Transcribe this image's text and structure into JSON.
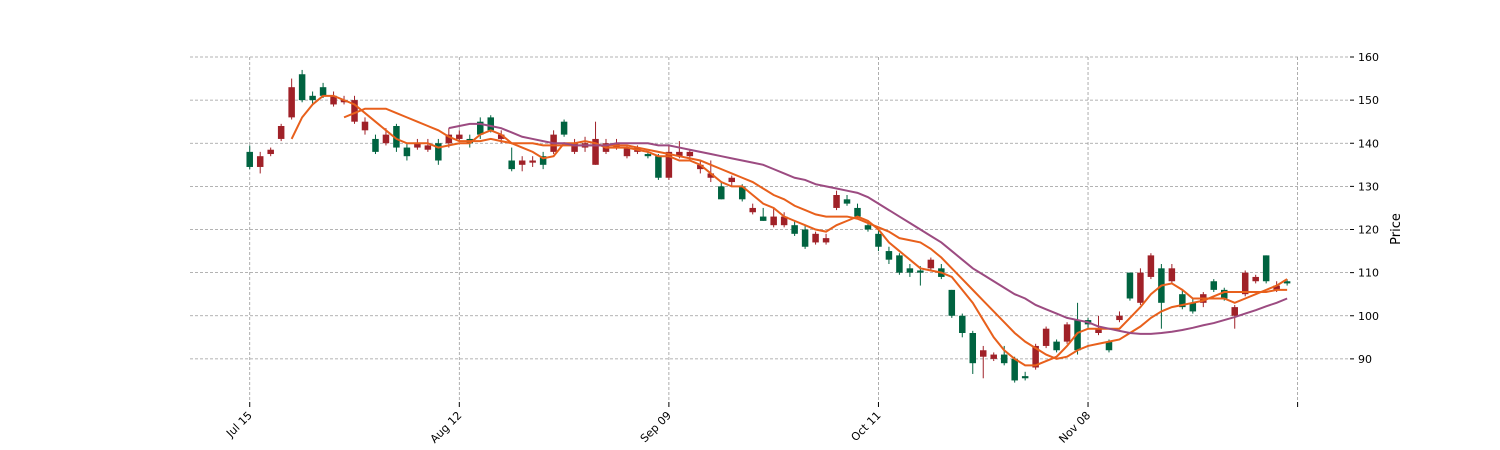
{
  "chart_data": {
    "type": "candlestick",
    "y_label": "Price",
    "up_color": "#006340",
    "down_color": "#a02128",
    "xlim": [
      -5.7,
      105
    ],
    "ylim": [
      80,
      160
    ],
    "xticks": [
      {
        "value": 0,
        "label": "Jul 15"
      },
      {
        "value": 20,
        "label": "Aug 12"
      },
      {
        "value": 40,
        "label": "Sep 09"
      },
      {
        "value": 60,
        "label": "Oct 11"
      },
      {
        "value": 80,
        "label": "Nov 08"
      },
      {
        "value": 100,
        "label": null
      }
    ],
    "yticks": [
      90,
      100,
      110,
      120,
      130,
      140,
      150,
      160
    ],
    "grid": true,
    "open": [
      134.5,
      137,
      138.5,
      144,
      153,
      150,
      150,
      151,
      151,
      150,
      150,
      145,
      138,
      142,
      139,
      137,
      140,
      139.5,
      136,
      142,
      142,
      140,
      142,
      143,
      142,
      134,
      136,
      136,
      135,
      142,
      142,
      140,
      140,
      141,
      140,
      140,
      139,
      139,
      137,
      132,
      138,
      138,
      138,
      135,
      133,
      127,
      132,
      127,
      125,
      122,
      123,
      123,
      119,
      116,
      119,
      118,
      128,
      126,
      123,
      120,
      116,
      113,
      110,
      110,
      110,
      113,
      109,
      100,
      96,
      89,
      92,
      91,
      89,
      85,
      85.5,
      93,
      97,
      92,
      98,
      92,
      98,
      97,
      92,
      100,
      104,
      110,
      114,
      103,
      111,
      102,
      101,
      105,
      106,
      104,
      102,
      110,
      109,
      108,
      107,
      107.5
    ],
    "close": [
      138,
      134.5,
      137.5,
      141,
      146,
      156,
      151,
      153,
      149,
      149.5,
      145,
      143,
      141,
      140,
      144,
      139,
      139,
      138.5,
      140,
      140,
      141,
      141,
      145,
      146,
      141,
      136,
      135,
      135.5,
      137,
      138,
      145,
      138,
      139,
      135,
      138,
      139,
      137,
      138,
      137.5,
      137,
      132,
      137,
      137,
      134,
      132,
      130,
      131,
      130,
      124,
      123,
      121,
      121,
      121,
      120,
      117,
      117,
      125,
      127,
      125,
      121,
      119,
      115,
      114,
      111,
      110.5,
      111,
      111,
      106,
      100,
      96,
      90.5,
      90,
      91,
      90,
      86,
      88,
      93,
      94,
      94,
      99,
      99,
      96,
      94,
      99,
      110,
      103,
      109,
      111,
      108,
      105,
      103,
      103,
      108,
      106,
      100,
      105,
      108,
      114,
      106,
      108
    ],
    "high": [
      139.5,
      138,
      139,
      144.5,
      155,
      157,
      152,
      154,
      152,
      151,
      151,
      146,
      142,
      143.5,
      144.5,
      140,
      141,
      141,
      141,
      143.5,
      143,
      142,
      146,
      146.5,
      143,
      139,
      137,
      137,
      138,
      143,
      145.5,
      141,
      141.5,
      145,
      141,
      141,
      139.5,
      139.5,
      138,
      137.5,
      139.5,
      140.5,
      138.5,
      136,
      136,
      131,
      132.5,
      130.5,
      126,
      125,
      125,
      124,
      122,
      121,
      119.5,
      119,
      129,
      128,
      126,
      122,
      120.5,
      116,
      114.5,
      112,
      111.5,
      113.5,
      112,
      106,
      100.5,
      96.5,
      93,
      91.5,
      93,
      90.5,
      87,
      93.5,
      97.5,
      94.5,
      98.5,
      103,
      99.5,
      100,
      94.5,
      101,
      110,
      111,
      114.5,
      112,
      112,
      106,
      104,
      105.5,
      108.5,
      106.5,
      102.5,
      110.5,
      109.5,
      114,
      108,
      108.5
    ],
    "low": [
      134,
      133,
      137,
      140.5,
      145.5,
      149.5,
      149,
      150.5,
      148.5,
      149,
      144.5,
      142,
      137.5,
      139.5,
      138,
      136,
      138.5,
      138,
      135,
      139,
      140.5,
      139,
      141,
      142.5,
      140,
      133.5,
      133.5,
      134.5,
      134,
      137.5,
      141.5,
      137.5,
      138,
      135,
      137.5,
      138.5,
      136.5,
      137.5,
      136.5,
      131.5,
      131.5,
      136.5,
      136,
      133,
      131,
      127,
      130,
      126.5,
      123.5,
      122,
      120.5,
      120.5,
      118.5,
      115.5,
      116.5,
      116.5,
      124.5,
      125.5,
      122.5,
      119.5,
      115,
      112,
      109.5,
      109,
      107,
      110.5,
      108.5,
      99.5,
      95,
      86.5,
      85.5,
      89.5,
      88.5,
      84.5,
      85,
      87.5,
      92.5,
      91.5,
      93.5,
      91,
      97,
      95.5,
      91.5,
      98.5,
      103.5,
      102.5,
      108.5,
      97,
      107.5,
      101.5,
      100.5,
      102,
      105.5,
      103.5,
      97,
      104.5,
      107.5,
      107.5,
      105.5,
      107
    ],
    "lines": [
      {
        "color": "#e8601c",
        "values": [
          null,
          null,
          null,
          null,
          141,
          146,
          149,
          151,
          151,
          150,
          149,
          147,
          145,
          143,
          141,
          140,
          140,
          140,
          139,
          139.5,
          140,
          140,
          142,
          143,
          142,
          140,
          139,
          138,
          136.5,
          137,
          140,
          140,
          140.5,
          140,
          139,
          139,
          139,
          138.5,
          138,
          137,
          137,
          136,
          136,
          135,
          133,
          131,
          130,
          130,
          128,
          126,
          125,
          123,
          122,
          121,
          120,
          119.5,
          121,
          122,
          123,
          122,
          120,
          117,
          115,
          113,
          111,
          110.5,
          110,
          109,
          106,
          103,
          99,
          95,
          92,
          90,
          88.5,
          88.5,
          89.5,
          90.5,
          93,
          96,
          97,
          97,
          97,
          97,
          99.5,
          102,
          105,
          107,
          107.5,
          106,
          104,
          104,
          104,
          104,
          103,
          104,
          105,
          106,
          107,
          108.5
        ]
      },
      {
        "color": "#e8601c",
        "values": [
          null,
          null,
          null,
          null,
          null,
          null,
          null,
          null,
          null,
          146,
          147,
          148,
          148,
          148,
          147,
          146,
          145,
          144,
          143,
          141.5,
          140.5,
          140.5,
          140.5,
          141,
          140.5,
          140,
          140,
          140,
          139.5,
          139.5,
          139.5,
          139.5,
          139.5,
          139.5,
          139.5,
          139.5,
          139.5,
          139,
          138.5,
          138,
          137.5,
          137,
          136.5,
          136,
          135,
          134,
          133,
          132,
          131,
          129.5,
          128,
          127,
          125.5,
          124.5,
          123.5,
          123,
          123,
          123,
          122.5,
          121.5,
          120.5,
          119.5,
          118,
          117.5,
          117,
          115.5,
          113.5,
          111,
          108.5,
          106,
          103.5,
          101,
          98.5,
          96,
          94,
          92.5,
          91,
          90,
          90.5,
          92,
          93,
          93.5,
          94,
          94.5,
          96,
          97.5,
          99.5,
          101,
          102,
          102.5,
          103,
          103.5,
          104.5,
          105.5,
          105.5,
          105.5,
          105.5,
          105.5,
          106,
          106
        ]
      },
      {
        "color": "#9c4b81",
        "values": [
          null,
          null,
          null,
          null,
          null,
          null,
          null,
          null,
          null,
          null,
          null,
          null,
          null,
          null,
          null,
          null,
          null,
          null,
          null,
          143.5,
          144,
          144.5,
          144.5,
          144,
          143.5,
          142.5,
          141.5,
          141,
          140.5,
          140,
          140,
          139.5,
          139.5,
          139.5,
          139.5,
          140,
          140,
          140,
          140,
          139.5,
          139.5,
          139,
          138.5,
          138,
          137.5,
          137,
          136.5,
          136,
          135.5,
          135,
          134,
          133,
          132,
          131.5,
          130.5,
          130,
          129.5,
          129,
          128.5,
          127.5,
          126,
          124.5,
          123,
          121.5,
          120,
          118.5,
          117,
          115,
          113,
          111,
          109.5,
          108,
          106.5,
          105,
          104,
          102.5,
          101.5,
          100.5,
          99.5,
          99,
          98.5,
          97.5,
          97,
          96.5,
          96,
          95.8,
          95.8,
          96,
          96.3,
          96.7,
          97.2,
          97.8,
          98.3,
          99,
          99.7,
          100.5,
          101.3,
          102.2,
          103,
          104
        ]
      }
    ]
  }
}
